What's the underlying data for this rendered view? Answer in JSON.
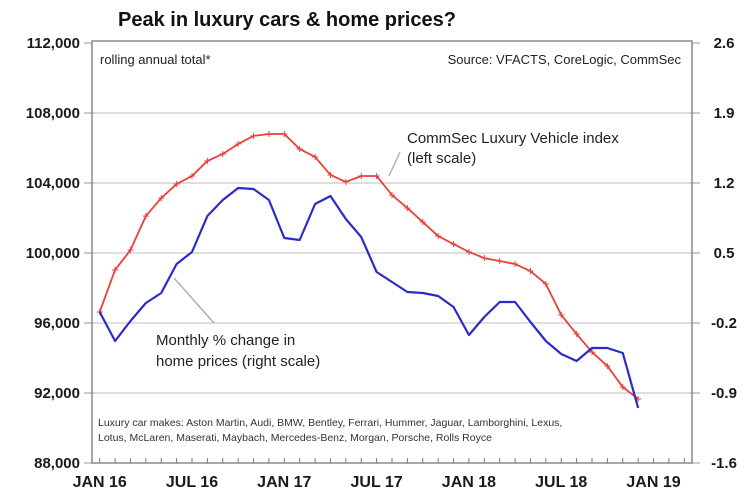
{
  "chart_data": {
    "type": "line",
    "title": "Peak in luxury cars & home prices?",
    "subtitle": "rolling annual total*",
    "source": "Source: VFACTS, CoreLogic, CommSec",
    "footnote": [
      "Luxury car makes: Aston Martin, Audi, BMW, Bentley, Ferrari, Hummer, Jaguar, Lamborghini, Lexus,",
      "Lotus, McLaren, Maserati, Maybach, Mercedes-Benz, Morgan, Porsche, Rolls Royce"
    ],
    "x_tick_labels": [
      "JAN 16",
      "JUL 16",
      "JAN 17",
      "JUL 17",
      "JAN 18",
      "JUL 18",
      "JAN 19"
    ],
    "x_tick_months": [
      0,
      6,
      12,
      18,
      24,
      30,
      36
    ],
    "x_range_months": [
      -0.5,
      38.5
    ],
    "x_start": "Jan 2016",
    "x_frequency": "monthly",
    "y_left": {
      "label": "",
      "range": [
        88000,
        112000
      ],
      "ticks": [
        88000,
        92000,
        96000,
        100000,
        104000,
        108000,
        112000
      ],
      "tick_labels": [
        "88,000",
        "92,000",
        "96,000",
        "100,000",
        "104,000",
        "108,000",
        "112,000"
      ]
    },
    "y_right": {
      "label": "",
      "range": [
        -1.6,
        2.6
      ],
      "ticks": [
        -1.6,
        -0.9,
        -0.2,
        0.5,
        1.2,
        1.9,
        2.6
      ],
      "tick_labels": [
        "-1.6",
        "-0.9",
        "-0.2",
        "0.5",
        "1.2",
        "1.9",
        "2.6"
      ]
    },
    "grid": true,
    "series": [
      {
        "name": "CommSec Luxury Vehicle index",
        "axis": "left",
        "color": "#e8413c",
        "markers": true,
        "annotation": [
          "CommSec Luxury Vehicle index",
          "(left scale)"
        ],
        "values": [
          96630,
          99030,
          100170,
          102110,
          103140,
          103940,
          104400,
          105260,
          105660,
          106230,
          106690,
          106800,
          106800,
          105940,
          105490,
          104460,
          104060,
          104400,
          104400,
          103310,
          102570,
          101770,
          100970,
          100510,
          100060,
          99710,
          99540,
          99370,
          98970,
          98230,
          96460,
          95370,
          94340,
          93540,
          92340,
          91660
        ]
      },
      {
        "name": "Monthly % change in home prices",
        "axis": "right",
        "color": "#2b2bc8",
        "markers": false,
        "annotation": [
          "Monthly % change in",
          "home prices (right scale)"
        ],
        "values": [
          -0.09,
          -0.38,
          -0.18,
          0.0,
          0.1,
          0.39,
          0.51,
          0.87,
          1.03,
          1.15,
          1.14,
          1.03,
          0.65,
          0.63,
          0.99,
          1.07,
          0.84,
          0.66,
          0.31,
          0.21,
          0.11,
          0.1,
          0.07,
          -0.04,
          -0.32,
          -0.14,
          0.01,
          0.01,
          -0.19,
          -0.38,
          -0.51,
          -0.58,
          -0.45,
          -0.45,
          -0.5,
          -1.05
        ]
      }
    ],
    "colors": {
      "grid": "#d4d4d4",
      "frame": "#6e6e6e",
      "leader_line": "#b0b0b0"
    }
  }
}
